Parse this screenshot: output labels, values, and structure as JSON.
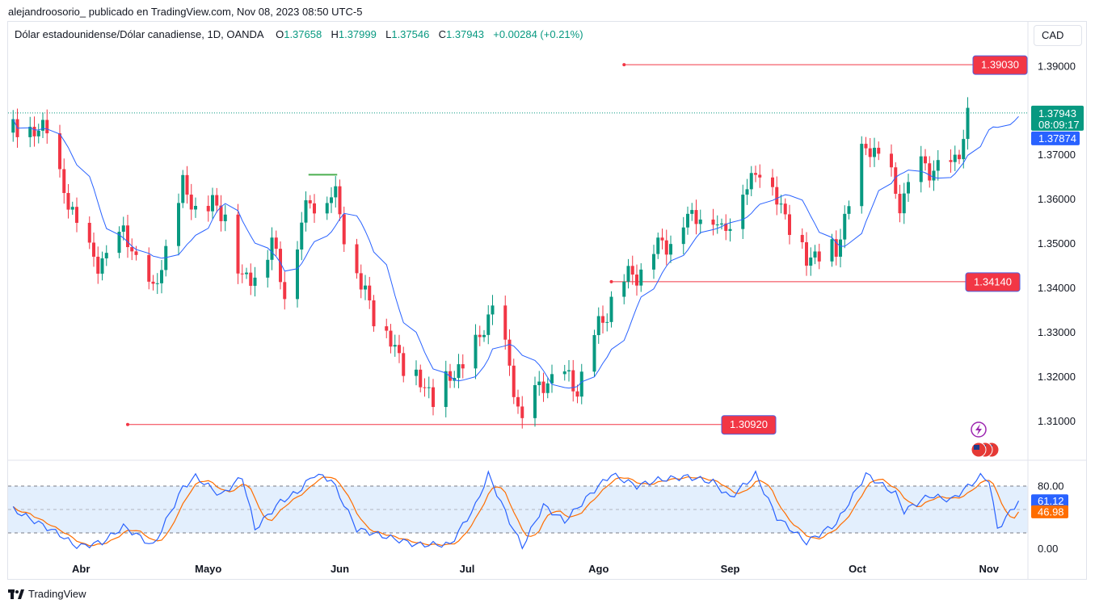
{
  "header": {
    "text": "alejandroosorio_ publicado en TradingView.com, Nov 08, 2023 08:50 UTC-5"
  },
  "legend": {
    "symbol": "Dólar estadounidense/Dólar canadiense, 1D, OANDA",
    "o_label": "O",
    "o": "1.37658",
    "h_label": "H",
    "h": "1.37999",
    "l_label": "L",
    "l": "1.37546",
    "c_label": "C",
    "c": "1.37943",
    "change": "+0.00284 (+0.21%)"
  },
  "currency_button": "CAD",
  "footer": {
    "brand": "TradingView"
  },
  "colors": {
    "up": "#089981",
    "down": "#f23645",
    "ma": "#2962ff",
    "stoch_d": "#ff6d00",
    "level": "#f23645",
    "band": "#e3effd"
  },
  "icons": [
    "flash-icon",
    "us-flag-icon"
  ],
  "chart_data": [
    {
      "type": "candlestick",
      "title": "",
      "ylim": [
        1.3015,
        1.3998
      ],
      "x_tick_labels": [
        "Abr",
        "Mayo",
        "Jun",
        "Jul",
        "Ago",
        "Sep",
        "Oct",
        "Nov"
      ],
      "y_tick_labels": [
        "1.39000",
        "1.38000",
        "1.37000",
        "1.36000",
        "1.35000",
        "1.34000",
        "1.33000",
        "1.32000",
        "1.31000"
      ],
      "price_labels": {
        "last": "1.37943",
        "countdown": "08:09:17",
        "ma": "1.37874"
      },
      "levels": [
        "1.39030",
        "1.34140",
        "1.30920"
      ],
      "anchors": [
        {
          "date": "2023-03-16",
          "price": 1.375
        },
        {
          "date": "2023-03-24",
          "price": 1.375
        },
        {
          "date": "2023-03-29",
          "price": 1.358
        },
        {
          "date": "2023-04-05",
          "price": 1.344
        },
        {
          "date": "2023-04-11",
          "price": 1.352
        },
        {
          "date": "2023-04-18",
          "price": 1.338
        },
        {
          "date": "2023-04-25",
          "price": 1.362
        },
        {
          "date": "2023-04-28",
          "price": 1.358
        },
        {
          "date": "2023-05-05",
          "price": 1.357
        },
        {
          "date": "2023-05-09",
          "price": 1.34
        },
        {
          "date": "2023-05-16",
          "price": 1.349
        },
        {
          "date": "2023-05-19",
          "price": 1.34
        },
        {
          "date": "2023-05-25",
          "price": 1.36
        },
        {
          "date": "2023-05-31",
          "price": 1.36
        },
        {
          "date": "2023-06-06",
          "price": 1.34
        },
        {
          "date": "2023-06-15",
          "price": 1.324
        },
        {
          "date": "2023-06-23",
          "price": 1.315
        },
        {
          "date": "2023-07-03",
          "price": 1.326
        },
        {
          "date": "2023-07-07",
          "price": 1.336
        },
        {
          "date": "2023-07-14",
          "price": 1.31
        },
        {
          "date": "2023-07-20",
          "price": 1.32
        },
        {
          "date": "2023-07-27",
          "price": 1.318
        },
        {
          "date": "2023-08-04",
          "price": 1.338
        },
        {
          "date": "2023-08-15",
          "price": 1.349
        },
        {
          "date": "2023-08-25",
          "price": 1.358
        },
        {
          "date": "2023-08-30",
          "price": 1.353
        },
        {
          "date": "2023-09-08",
          "price": 1.368
        },
        {
          "date": "2023-09-19",
          "price": 1.347
        },
        {
          "date": "2023-09-26",
          "price": 1.349
        },
        {
          "date": "2023-10-03",
          "price": 1.373
        },
        {
          "date": "2023-10-06",
          "price": 1.37
        },
        {
          "date": "2023-10-11",
          "price": 1.36
        },
        {
          "date": "2023-10-17",
          "price": 1.368
        },
        {
          "date": "2023-10-23",
          "price": 1.366
        },
        {
          "date": "2023-10-30",
          "price": 1.388
        },
        {
          "date": "2023-11-01",
          "price": 1.385
        },
        {
          "date": "2023-11-03",
          "price": 1.366
        },
        {
          "date": "2023-11-08",
          "price": 1.3794
        }
      ]
    },
    {
      "type": "line",
      "title": "",
      "ylim": [
        0,
        100
      ],
      "y_tick_labels": [
        "80.00",
        "0.00"
      ],
      "band": [
        20,
        80
      ],
      "k_last": "61.12",
      "d_last": "46.98",
      "k_points": [
        {
          "date": "2023-03-16",
          "value": 50
        },
        {
          "date": "2023-03-27",
          "value": 18
        },
        {
          "date": "2023-03-31",
          "value": 2
        },
        {
          "date": "2023-04-06",
          "value": 8
        },
        {
          "date": "2023-04-11",
          "value": 28
        },
        {
          "date": "2023-04-14",
          "value": 18
        },
        {
          "date": "2023-04-18",
          "value": 3
        },
        {
          "date": "2023-04-25",
          "value": 78
        },
        {
          "date": "2023-04-28",
          "value": 92
        },
        {
          "date": "2023-05-04",
          "value": 68
        },
        {
          "date": "2023-05-09",
          "value": 92
        },
        {
          "date": "2023-05-12",
          "value": 25
        },
        {
          "date": "2023-05-18",
          "value": 60
        },
        {
          "date": "2023-05-22",
          "value": 72
        },
        {
          "date": "2023-05-26",
          "value": 95
        },
        {
          "date": "2023-05-30",
          "value": 88
        },
        {
          "date": "2023-06-05",
          "value": 25
        },
        {
          "date": "2023-06-12",
          "value": 15
        },
        {
          "date": "2023-06-19",
          "value": 5
        },
        {
          "date": "2023-06-27",
          "value": 5
        },
        {
          "date": "2023-07-03",
          "value": 55
        },
        {
          "date": "2023-07-06",
          "value": 95
        },
        {
          "date": "2023-07-11",
          "value": 35
        },
        {
          "date": "2023-07-14",
          "value": 2
        },
        {
          "date": "2023-07-19",
          "value": 55
        },
        {
          "date": "2023-07-24",
          "value": 35
        },
        {
          "date": "2023-07-31",
          "value": 75
        },
        {
          "date": "2023-08-04",
          "value": 95
        },
        {
          "date": "2023-08-10",
          "value": 80
        },
        {
          "date": "2023-08-15",
          "value": 88
        },
        {
          "date": "2023-08-22",
          "value": 92
        },
        {
          "date": "2023-08-28",
          "value": 85
        },
        {
          "date": "2023-09-01",
          "value": 65
        },
        {
          "date": "2023-09-07",
          "value": 95
        },
        {
          "date": "2023-09-12",
          "value": 40
        },
        {
          "date": "2023-09-19",
          "value": 8
        },
        {
          "date": "2023-09-26",
          "value": 32
        },
        {
          "date": "2023-10-03",
          "value": 95
        },
        {
          "date": "2023-10-10",
          "value": 70
        },
        {
          "date": "2023-10-12",
          "value": 48
        },
        {
          "date": "2023-10-18",
          "value": 68
        },
        {
          "date": "2023-10-23",
          "value": 62
        },
        {
          "date": "2023-10-30",
          "value": 92
        },
        {
          "date": "2023-11-01",
          "value": 88
        },
        {
          "date": "2023-11-03",
          "value": 25
        },
        {
          "date": "2023-11-08",
          "value": 61
        }
      ]
    }
  ]
}
